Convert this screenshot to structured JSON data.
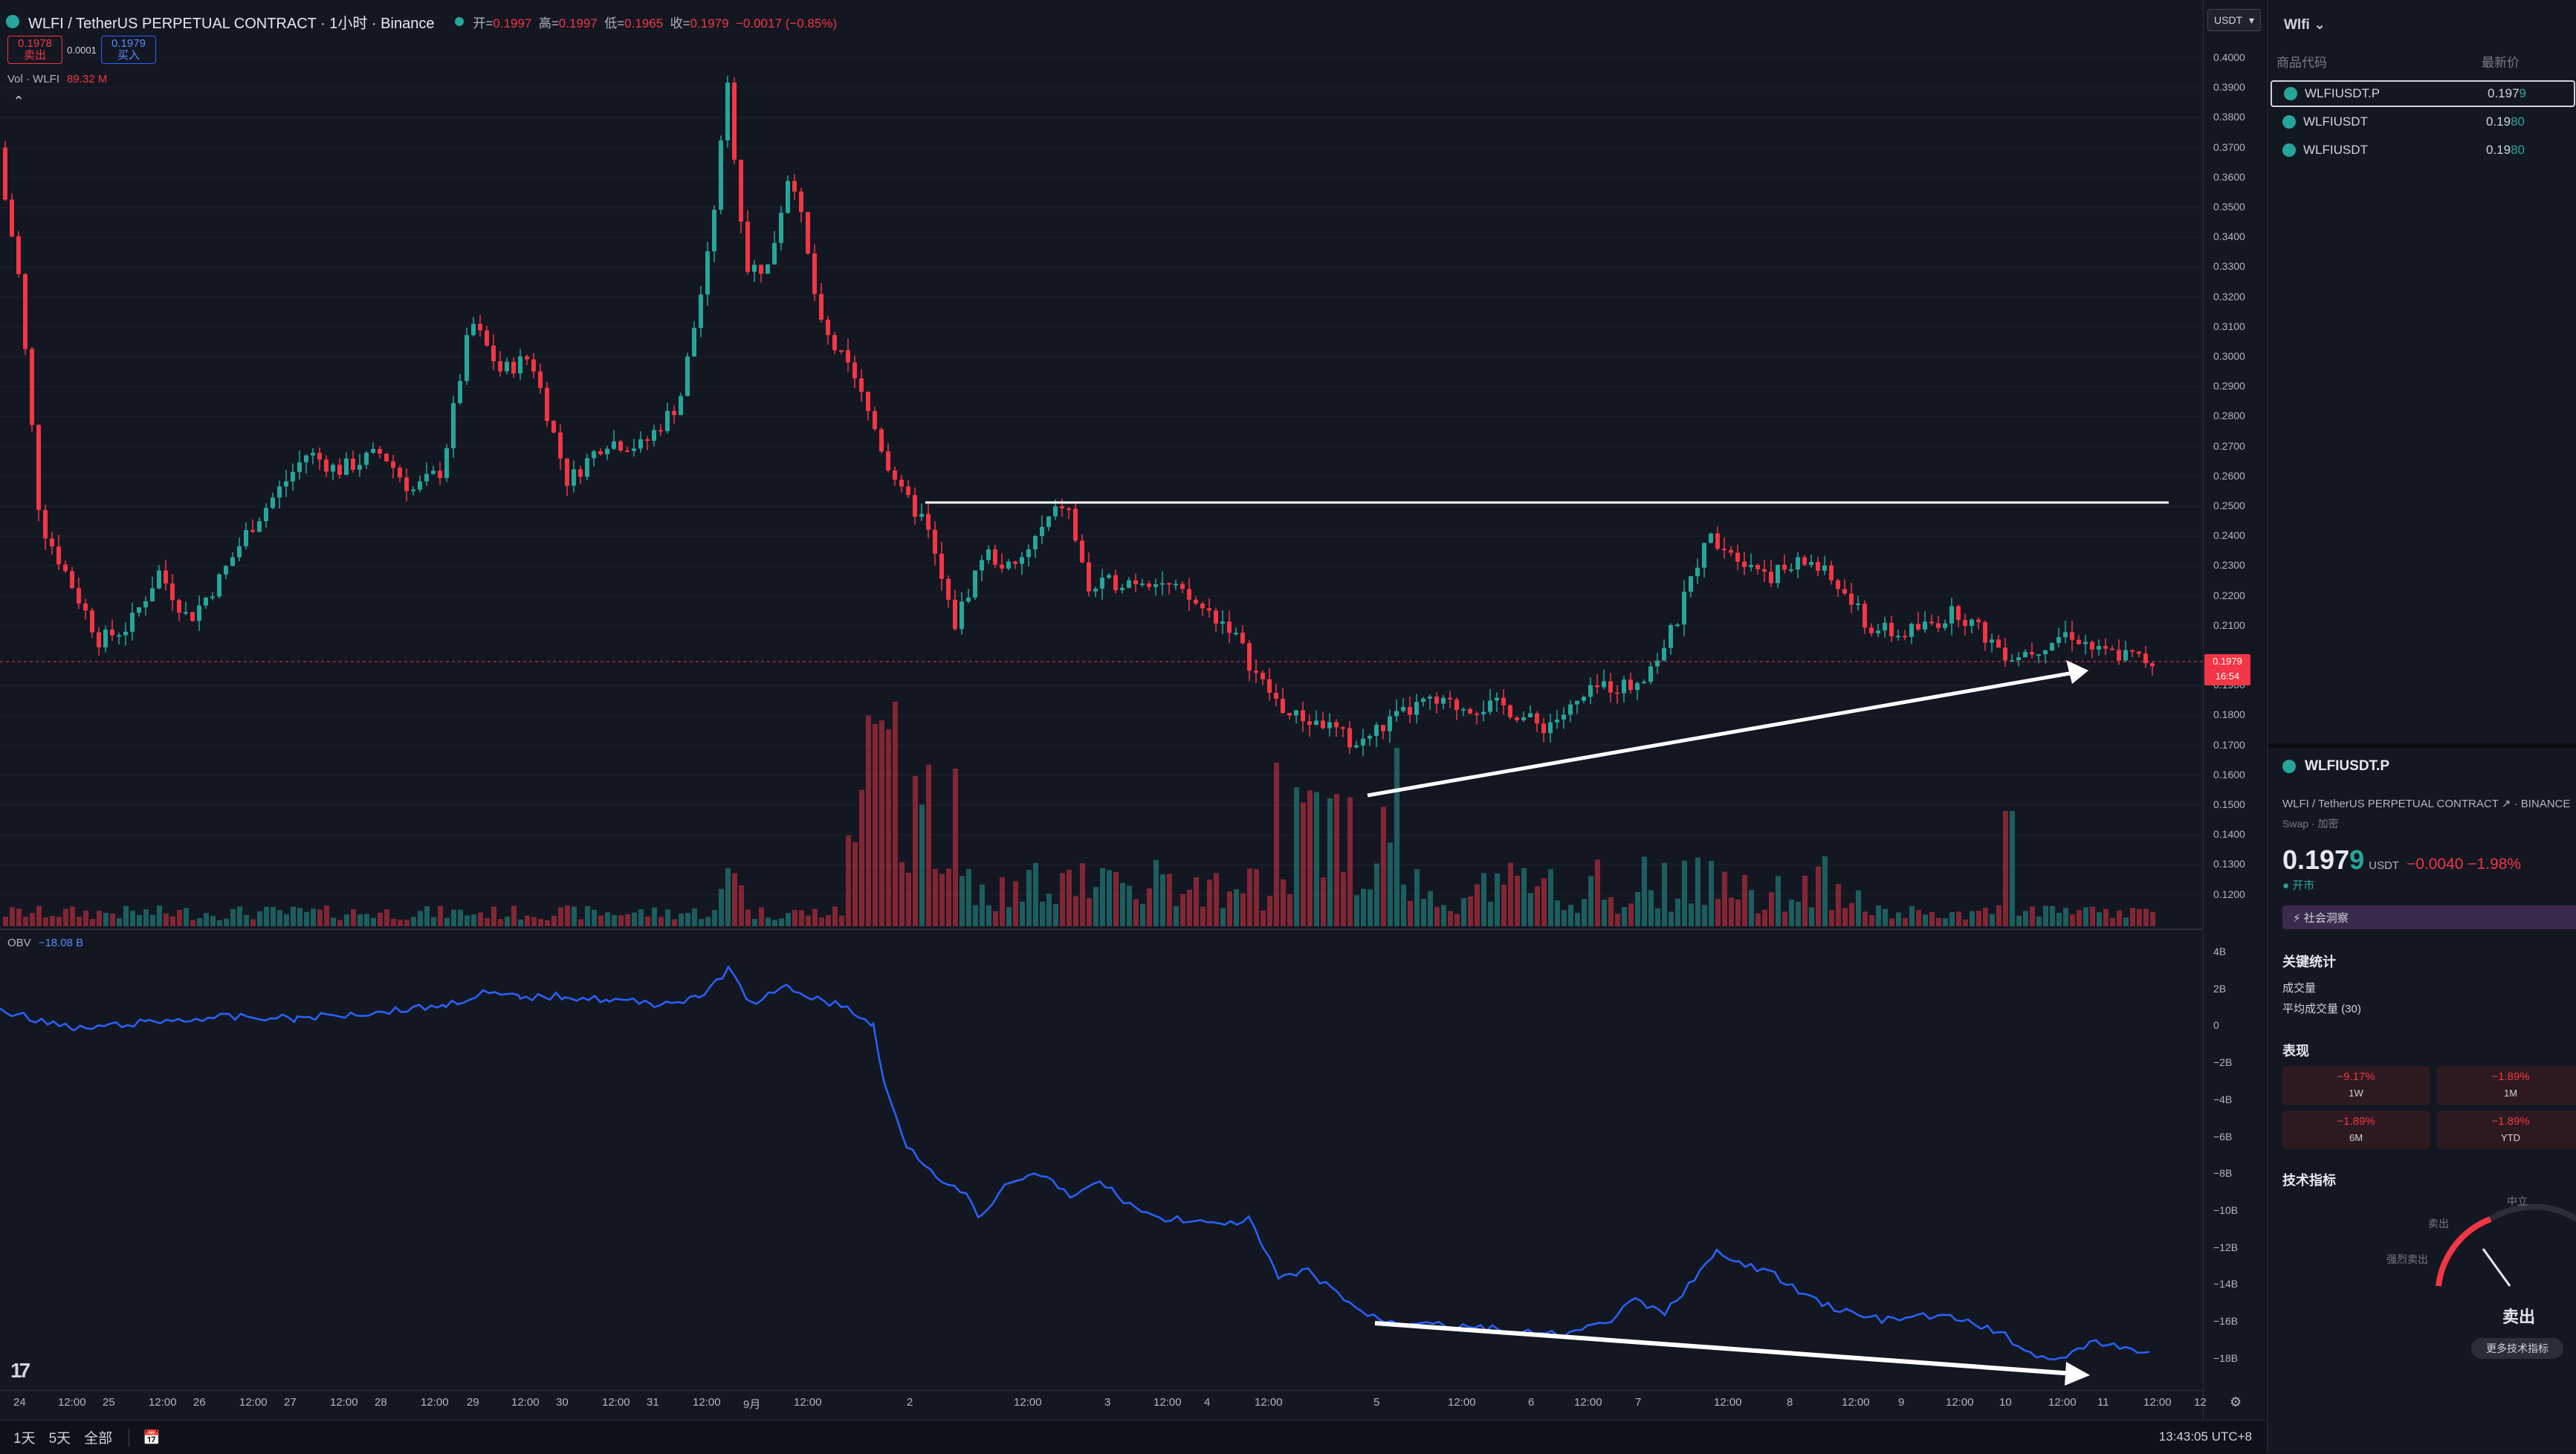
{
  "legend": {
    "title": "WLFI / TetherUS PERPETUAL CONTRACT · 1小时 · Binance",
    "o_label": "开=",
    "o": "0.1997",
    "h_label": "高=",
    "h": "0.1997",
    "l_label": "低=",
    "l": "0.1965",
    "c_label": "收=",
    "c": "0.1979",
    "chg": "−0.0017 (−0.85%)",
    "sell_price": "0.1978",
    "sell_label": "卖出",
    "spread": "0.0001",
    "buy_price": "0.1979",
    "buy_label": "买入",
    "vol_label": "Vol · WLFI",
    "vol_value": "89.32 M",
    "obv_label": "OBV",
    "obv_value": "−18.08 B"
  },
  "currency": "USDT",
  "price_ticks": [
    "0.4000",
    "0.3900",
    "0.3800",
    "0.3700",
    "0.3600",
    "0.3500",
    "0.3400",
    "0.3300",
    "0.3200",
    "0.3100",
    "0.3000",
    "0.2900",
    "0.2800",
    "0.2700",
    "0.2600",
    "0.2500",
    "0.2400",
    "0.2300",
    "0.2200",
    "0.2100",
    "0.1900",
    "0.1800",
    "0.1700",
    "0.1600",
    "0.1500",
    "0.1400",
    "0.1300",
    "0.1200"
  ],
  "current_price": "0.1979",
  "countdown": "16:54",
  "obv_ticks": [
    "4B",
    "2B",
    "0",
    "−2B",
    "−4B",
    "−6B",
    "−8B",
    "−10B",
    "−12B",
    "−14B",
    "−16B",
    "−18B"
  ],
  "time_labels": [
    "24",
    "12:00",
    "25",
    "12:00",
    "26",
    "12:00",
    "27",
    "12:00",
    "28",
    "12:00",
    "29",
    "12:00",
    "30",
    "12:00",
    "31",
    "12:00",
    "9月",
    "12:00",
    "2",
    "12:00",
    "3",
    "12:00",
    "4",
    "12:00",
    "5",
    "12:00",
    "6",
    "12:00",
    "7",
    "12:00",
    "8",
    "12:00",
    "9",
    "12:00",
    "10",
    "12:00",
    "11",
    "12:00",
    "12"
  ],
  "bottom_bar": {
    "d1": "1天",
    "d5": "5天",
    "all": "全部",
    "clock": "13:43:05 UTC+8"
  },
  "watchlist": {
    "title": "Wlfi",
    "col_symbol": "商品代码",
    "col_price": "最新价",
    "rows": [
      {
        "symbol": "WLFIUSDT.P",
        "price_a": "0.197",
        "price_b": "9"
      },
      {
        "symbol": "WLFIUSDT",
        "price_a": "0.19",
        "price_b": "80"
      },
      {
        "symbol": "WLFIUSDT",
        "price_a": "0.19",
        "price_b": "80"
      }
    ]
  },
  "detail": {
    "symbol": "WLFIUSDT.P",
    "fullname": "WLFI / TetherUS PERPETUAL CONTRACT",
    "exchange": "BINANCE",
    "type": "Swap · 加密",
    "price_a": "0.197",
    "price_b": "9",
    "unit": "USDT",
    "change": "−0.0040 −1.98%",
    "status": "● 开市",
    "badge": "⚡ 社会洞察",
    "key_stats": "关键统计",
    "volume_label": "成交量",
    "avg_volume_label": "平均成交量 (30)",
    "performance": "表现",
    "perf": [
      {
        "value": "−9.17%",
        "label": "1W"
      },
      {
        "value": "−1.89%",
        "label": "1M"
      },
      {
        "value": "−1.89%",
        "label": "6M"
      },
      {
        "value": "−1.89%",
        "label": "YTD"
      }
    ],
    "tech_title": "技术指标",
    "gauge_neutral": "中立",
    "gauge_sell": "卖出",
    "gauge_strong_sell": "强烈卖出",
    "gauge_result": "卖出",
    "more_button": "更多技术指标"
  },
  "colors": {
    "up": "#26a69a",
    "down": "#f23645",
    "obv": "#2962ff",
    "background": "#131722"
  }
}
